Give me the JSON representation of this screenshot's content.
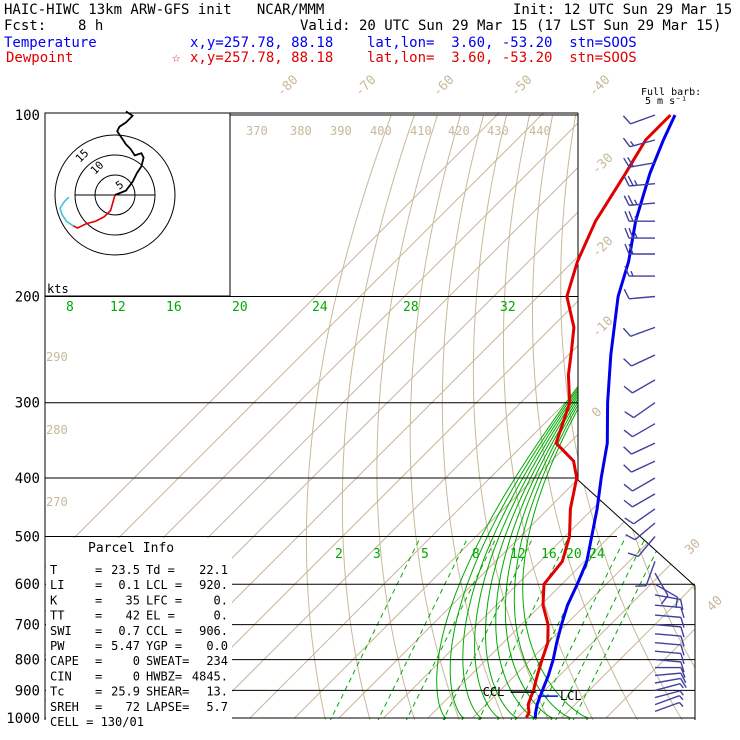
{
  "header": {
    "title": "HAIC-HIWC 13km ARW-GFS init   NCAR/MMM",
    "init": "Init: 12 UTC Sun 29 Mar 15",
    "fcst_label": "Fcst:",
    "fcst_value": "8 h",
    "valid": "Valid: 20 UTC Sun 29 Mar 15 (17 LST Sun 29 Mar 15)",
    "temperature_label": "Temperature",
    "temperature_info": "x,y=257.78, 88.18    lat,lon=  3.60, -53.20  stn=SOOS",
    "dewpoint_label": "Dewpoint",
    "dewpoint_marker": "☆",
    "dewpoint_info": "x,y=257.78, 88.18    lat,lon=  3.60, -53.20  stn=SOOS"
  },
  "barb_legend": {
    "line1": "Full barb:",
    "line2": "5 m s⁻¹"
  },
  "hodograph": {
    "rings": [
      "5",
      "10",
      "15"
    ],
    "units": "kts"
  },
  "parcel_info": {
    "title": "Parcel Info",
    "rows": [
      {
        "l1": "T",
        "v1": "23.5",
        "l2": "Td =",
        "v2": "22.1"
      },
      {
        "l1": "LI",
        "v1": "0.1",
        "l2": "LCL =",
        "v2": "920."
      },
      {
        "l1": "K",
        "v1": "35",
        "l2": "LFC =",
        "v2": "0."
      },
      {
        "l1": "TT",
        "v1": "42",
        "l2": "EL =",
        "v2": "0."
      },
      {
        "l1": "SWI",
        "v1": "0.7",
        "l2": "CCL =",
        "v2": "906."
      },
      {
        "l1": "PW",
        "v1": "5.47",
        "l2": "YGP =",
        "v2": "0.0"
      },
      {
        "l1": "CAPE",
        "v1": "0",
        "l2": "SWEAT=",
        "v2": "234"
      },
      {
        "l1": "CIN",
        "v1": "0",
        "l2": "HWBZ=",
        "v2": "4845."
      },
      {
        "l1": "Tc",
        "v1": "25.9",
        "l2": "SHEAR=",
        "v2": "13."
      },
      {
        "l1": "SREH",
        "v1": "72",
        "l2": "LAPSE=",
        "v2": "5.7"
      }
    ],
    "cell": "CELL = 130/01"
  },
  "level_labels": {
    "lcl": "LCL",
    "ccl": "CCL"
  },
  "chart_data": {
    "type": "line",
    "chart_kind": "skew-T log-P",
    "y_axis": {
      "label": "",
      "unit": "hPa",
      "scale": "log",
      "range": [
        1000,
        100
      ],
      "ticks": [
        100,
        200,
        300,
        400,
        500,
        600,
        700,
        800,
        900,
        1000
      ]
    },
    "temperature_isotherm_labels": [
      "-80",
      "-70",
      "-60",
      "-50",
      "-40",
      "-30",
      "-20",
      "-10",
      "0",
      "10",
      "20",
      "30",
      "40"
    ],
    "theta_labels": [
      "370",
      "380",
      "390",
      "400",
      "410",
      "420",
      "430",
      "440",
      "290",
      "280",
      "270"
    ],
    "mixing_ratio_labels_top": [
      "8",
      "12",
      "16",
      "20",
      "24",
      "28",
      "32"
    ],
    "mixing_ratio_labels_mid": [
      "2",
      "3",
      "5",
      "8",
      "12",
      "16",
      "20",
      "24"
    ],
    "series": [
      {
        "name": "Temperature",
        "color": "#0000ee",
        "points": [
          [
            998,
            24.0
          ],
          [
            980,
            23.0
          ],
          [
            950,
            21.5
          ],
          [
            925,
            20.5
          ],
          [
            900,
            19.5
          ],
          [
            850,
            17.5
          ],
          [
            800,
            15.0
          ],
          [
            750,
            12.0
          ],
          [
            700,
            9.0
          ],
          [
            650,
            6.0
          ],
          [
            600,
            3.5
          ],
          [
            550,
            0.5
          ],
          [
            500,
            -4.0
          ],
          [
            450,
            -9.0
          ],
          [
            400,
            -15.0
          ],
          [
            350,
            -21.5
          ],
          [
            300,
            -30.5
          ],
          [
            250,
            -40.5
          ],
          [
            200,
            -52.0
          ],
          [
            175,
            -57.5
          ],
          [
            150,
            -65.0
          ],
          [
            125,
            -72.5
          ],
          [
            110,
            -77.0
          ],
          [
            100,
            -80.0
          ]
        ]
      },
      {
        "name": "Dewpoint",
        "color": "#e00000",
        "points": [
          [
            998,
            22.0
          ],
          [
            980,
            21.5
          ],
          [
            950,
            19.5
          ],
          [
            925,
            18.5
          ],
          [
            900,
            17.5
          ],
          [
            850,
            15.0
          ],
          [
            800,
            12.5
          ],
          [
            750,
            10.0
          ],
          [
            700,
            6.0
          ],
          [
            650,
            0.5
          ],
          [
            600,
            -4.0
          ],
          [
            550,
            -5.0
          ],
          [
            500,
            -9.0
          ],
          [
            450,
            -15.0
          ],
          [
            400,
            -20.5
          ],
          [
            375,
            -25.0
          ],
          [
            350,
            -33.0
          ],
          [
            300,
            -39.0
          ],
          [
            270,
            -45.5
          ],
          [
            245,
            -50.5
          ],
          [
            225,
            -55.0
          ],
          [
            200,
            -63.5
          ],
          [
            175,
            -69.0
          ],
          [
            150,
            -74.0
          ],
          [
            125,
            -78.0
          ],
          [
            110,
            -81.0
          ],
          [
            100,
            -81.0
          ]
        ]
      }
    ]
  },
  "hodograph_trace": [
    [
      0,
      0
    ],
    [
      5,
      -2
    ],
    [
      8,
      -6
    ],
    [
      10,
      -10
    ],
    [
      12,
      -13
    ],
    [
      13,
      -17
    ],
    [
      12,
      -19
    ],
    [
      9,
      -18
    ],
    [
      7,
      -21
    ],
    [
      5,
      -23
    ],
    [
      3,
      -26
    ],
    [
      1,
      -29
    ],
    [
      2,
      -31
    ],
    [
      5,
      -33
    ],
    [
      7,
      -35
    ],
    [
      8,
      -36
    ],
    [
      5,
      -38
    ]
  ],
  "hodograph_lower": [
    [
      0,
      0
    ],
    [
      -2,
      7
    ],
    [
      -5,
      10
    ],
    [
      -9,
      12
    ],
    [
      -13,
      13
    ],
    [
      -15,
      14
    ],
    [
      -17,
      15
    ],
    [
      -19,
      14
    ]
  ],
  "hodograph_low2": [
    [
      -19,
      14
    ],
    [
      -22,
      12
    ],
    [
      -24,
      9
    ],
    [
      -25,
      6
    ],
    [
      -23,
      3
    ],
    [
      -21,
      1
    ]
  ],
  "wind_barbs": [
    {
      "p": 100,
      "dir": 250,
      "spd": 10
    },
    {
      "p": 110,
      "dir": 255,
      "spd": 15
    },
    {
      "p": 120,
      "dir": 260,
      "spd": 20
    },
    {
      "p": 130,
      "dir": 265,
      "spd": 25
    },
    {
      "p": 140,
      "dir": 265,
      "spd": 25
    },
    {
      "p": 150,
      "dir": 270,
      "spd": 25
    },
    {
      "p": 160,
      "dir": 270,
      "spd": 25
    },
    {
      "p": 170,
      "dir": 270,
      "spd": 20
    },
    {
      "p": 185,
      "dir": 270,
      "spd": 15
    },
    {
      "p": 200,
      "dir": 265,
      "spd": 10
    },
    {
      "p": 225,
      "dir": 250,
      "spd": 10
    },
    {
      "p": 250,
      "dir": 245,
      "spd": 10
    },
    {
      "p": 275,
      "dir": 240,
      "spd": 10
    },
    {
      "p": 300,
      "dir": 235,
      "spd": 10
    },
    {
      "p": 325,
      "dir": 240,
      "spd": 10
    },
    {
      "p": 350,
      "dir": 245,
      "spd": 10
    },
    {
      "p": 375,
      "dir": 245,
      "spd": 10
    },
    {
      "p": 400,
      "dir": 240,
      "spd": 10
    },
    {
      "p": 425,
      "dir": 240,
      "spd": 10
    },
    {
      "p": 450,
      "dir": 235,
      "spd": 10
    },
    {
      "p": 475,
      "dir": 230,
      "spd": 10
    },
    {
      "p": 500,
      "dir": 220,
      "spd": 10
    },
    {
      "p": 550,
      "dir": 200,
      "spd": 10
    },
    {
      "p": 575,
      "dir": 150,
      "spd": 10
    },
    {
      "p": 600,
      "dir": 120,
      "spd": 10
    },
    {
      "p": 625,
      "dir": 100,
      "spd": 10
    },
    {
      "p": 650,
      "dir": 95,
      "spd": 10
    },
    {
      "p": 675,
      "dir": 95,
      "spd": 10
    },
    {
      "p": 700,
      "dir": 95,
      "spd": 10
    },
    {
      "p": 725,
      "dir": 95,
      "spd": 10
    },
    {
      "p": 750,
      "dir": 95,
      "spd": 10
    },
    {
      "p": 775,
      "dir": 95,
      "spd": 10
    },
    {
      "p": 800,
      "dir": 95,
      "spd": 10
    },
    {
      "p": 825,
      "dir": 90,
      "spd": 10
    },
    {
      "p": 850,
      "dir": 85,
      "spd": 10
    },
    {
      "p": 875,
      "dir": 80,
      "spd": 10
    },
    {
      "p": 900,
      "dir": 75,
      "spd": 5
    },
    {
      "p": 925,
      "dir": 75,
      "spd": 5
    },
    {
      "p": 950,
      "dir": 70,
      "spd": 5
    },
    {
      "p": 975,
      "dir": 70,
      "spd": 5
    }
  ],
  "colors": {
    "temperature": "#0000ee",
    "dewpoint": "#e00000",
    "isotherm": "#c8b89a",
    "mixing_ratio": "#00aa00",
    "grid": "#000000",
    "barbs": "#4040a0",
    "hodo_low": "#40c0e0"
  }
}
